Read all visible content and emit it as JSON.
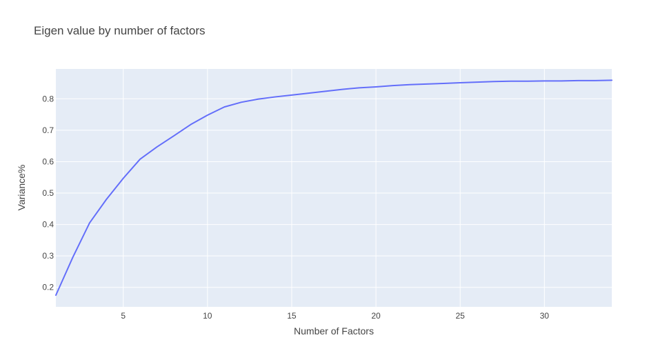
{
  "chart_data": {
    "type": "line",
    "title": "Eigen value by number of factors",
    "xlabel": "Number of Factors",
    "ylabel": "Variance%",
    "xlim": [
      1,
      34
    ],
    "ylim": [
      0.138,
      0.895
    ],
    "xticks": [
      5,
      10,
      15,
      20,
      25,
      30
    ],
    "yticks": [
      0.2,
      0.3,
      0.4,
      0.5,
      0.6,
      0.7,
      0.8
    ],
    "grid": true,
    "legend": "none",
    "colors": {
      "plot_background": "#E5ECF6",
      "grid": "#FFFFFF",
      "line": "#636EFA"
    },
    "series": [
      {
        "x": [
          1,
          2,
          3,
          4,
          5,
          6,
          7,
          8,
          9,
          10,
          11,
          12,
          13,
          14,
          15,
          16,
          17,
          18,
          19,
          20,
          21,
          22,
          23,
          24,
          25,
          26,
          27,
          28,
          29,
          30,
          31,
          32,
          33,
          34
        ],
        "y": [
          0.175,
          0.295,
          0.405,
          0.48,
          0.547,
          0.608,
          0.647,
          0.682,
          0.718,
          0.748,
          0.774,
          0.789,
          0.799,
          0.806,
          0.812,
          0.818,
          0.824,
          0.83,
          0.835,
          0.838,
          0.842,
          0.845,
          0.847,
          0.849,
          0.851,
          0.853,
          0.855,
          0.856,
          0.856,
          0.857,
          0.857,
          0.858,
          0.858,
          0.859
        ]
      }
    ]
  }
}
